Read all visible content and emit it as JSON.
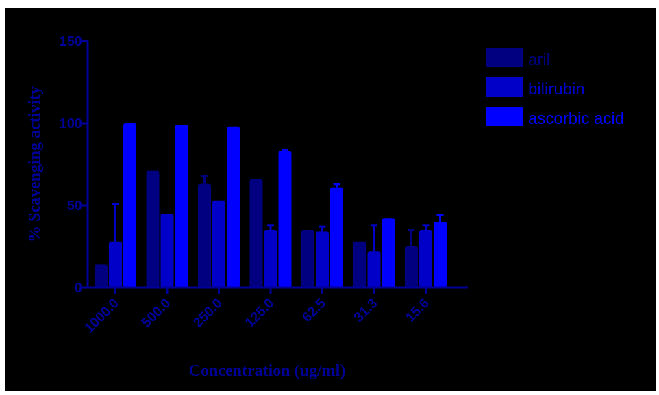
{
  "chart_data": {
    "type": "bar",
    "title": "",
    "xlabel": "Concentration (ug/ml)",
    "ylabel": "% Scavenging activity",
    "ylim": [
      0,
      150
    ],
    "yticks": [
      "0",
      "50",
      "100",
      "150"
    ],
    "categories": [
      "1000.0",
      "500.0",
      "250.0",
      "125.0",
      "62.5",
      "31.3",
      "15.6"
    ],
    "series": [
      {
        "name": "aril",
        "color": "#000080",
        "values": [
          14,
          71,
          63,
          66,
          35,
          28,
          25
        ],
        "errors": [
          0,
          0,
          5,
          0,
          0,
          0,
          10
        ]
      },
      {
        "name": "bilirubin",
        "color": "#0000c8",
        "values": [
          28,
          45,
          53,
          35,
          34,
          22,
          35
        ],
        "errors": [
          23,
          0,
          0,
          3,
          3,
          16,
          3
        ]
      },
      {
        "name": "ascorbic acid",
        "color": "#0000ff",
        "values": [
          100,
          99,
          98,
          83,
          61,
          42,
          40
        ],
        "errors": [
          0,
          0,
          0,
          1,
          2,
          0,
          4
        ]
      }
    ],
    "legend_position": "top-right",
    "grid": false,
    "axis_color": "#000099"
  }
}
